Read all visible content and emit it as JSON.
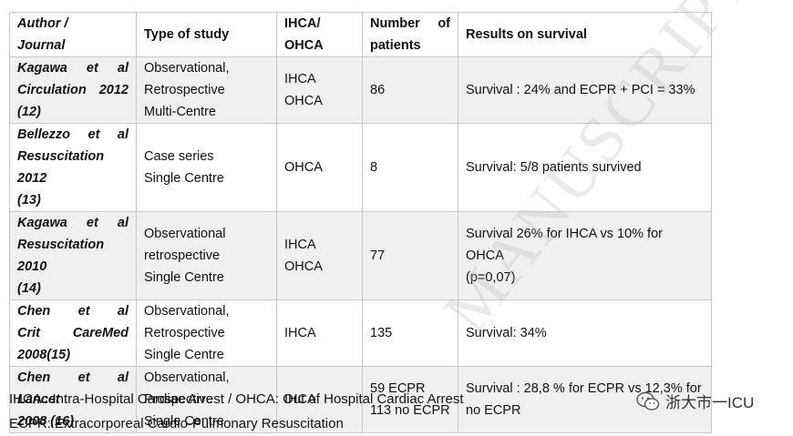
{
  "header": {
    "author_lines": [
      "Author /",
      "Journal"
    ],
    "type": "Type of study",
    "ihca_lines": [
      "IHCA/",
      "OHCA"
    ],
    "number_lines": [
      "Number of",
      "patients"
    ],
    "results": "Results on survival"
  },
  "rows": [
    {
      "author_lines": [
        "Kagawa et al",
        "Circulation 2012",
        "(12)"
      ],
      "type_lines": [
        "Observational,",
        "Retrospective",
        "Multi-Centre"
      ],
      "ihca_lines": [
        "IHCA",
        "OHCA"
      ],
      "number_lines": [
        "86"
      ],
      "result_lines": [
        "Survival : 24%  and ECPR + PCI = 33%"
      ]
    },
    {
      "author_lines": [
        "Bellezzo et al",
        "Resuscitation 2012",
        "(13)"
      ],
      "type_lines": [
        "Case series",
        "Single Centre"
      ],
      "ihca_lines": [
        "OHCA"
      ],
      "number_lines": [
        "8"
      ],
      "result_lines": [
        "Survival: 5/8 patients survived"
      ]
    },
    {
      "author_lines": [
        "Kagawa et al",
        "Resuscitation 2010",
        "(14)"
      ],
      "type_lines": [
        "Observational",
        "retrospective",
        "Single Centre"
      ],
      "ihca_lines": [
        "IHCA",
        "OHCA"
      ],
      "number_lines": [
        "77"
      ],
      "result_lines": [
        "Survival 26% for IHCA vs 10% for OHCA",
        "(p=0,07)"
      ]
    },
    {
      "author_lines": [
        "Chen et al",
        "Crit CareMed",
        "2008(15)"
      ],
      "type_lines": [
        "Observational,",
        "Retrospective",
        "Single Centre"
      ],
      "ihca_lines": [
        "IHCA"
      ],
      "number_lines": [
        "135"
      ],
      "result_lines": [
        "Survival: 34%"
      ]
    },
    {
      "author_lines": [
        "Chen et al",
        "Lancet",
        "2008 (16)"
      ],
      "type_lines": [
        "Observational,",
        "Prospective",
        "Single Centre"
      ],
      "ihca_lines": [
        "IHCA"
      ],
      "number_lines": [
        "59 ECPR",
        "113 no ECPR"
      ],
      "result_lines": [
        "Survival : 28,8 % for ECPR  vs 12,3% for",
        "no ECPR"
      ]
    }
  ],
  "footer": {
    "line1": "IHCA : Intra-Hospital Cardiac Arrest  / OHCA: Out of Hospital Cardiac Arrest",
    "line2": "ECPR: Extracorporeal Cardio-Pulmonary Resuscitation"
  },
  "watermark": "MANUSCRIPT",
  "badge": {
    "text": "浙大市一ICU",
    "icon": "wechat-icon"
  }
}
